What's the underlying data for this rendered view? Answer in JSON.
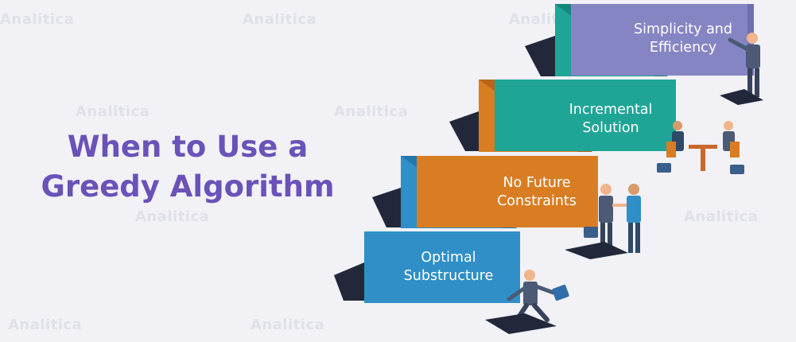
{
  "title": {
    "line1": "When to Use a",
    "line2": "Greedy Algorithm"
  },
  "steps": [
    {
      "line1": "Optimal",
      "line2": "Substructure",
      "color": "#2f8fc6"
    },
    {
      "line1": "No Future",
      "line2": "Constraints",
      "color": "#d97d23"
    },
    {
      "line1": "Incremental",
      "line2": "Solution",
      "color": "#1fa596"
    },
    {
      "line1": "Simplicity and",
      "line2": "Efficiency",
      "color": "#8585c4"
    }
  ],
  "watermark": "Analitica",
  "colors": {
    "title": "#6a52b8",
    "background": "#f1f1f6",
    "shadow": "#22283a"
  }
}
